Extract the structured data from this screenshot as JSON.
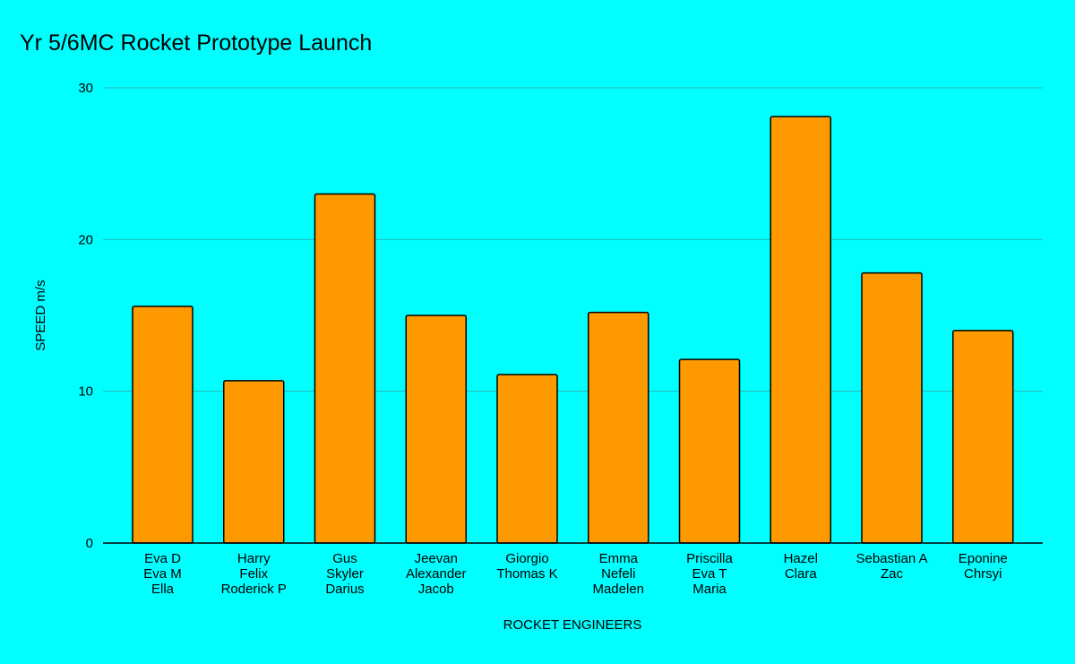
{
  "chart_data": {
    "type": "bar",
    "title": "Yr 5/6MC Rocket Prototype Launch",
    "xlabel": "ROCKET ENGINEERS",
    "ylabel": "SPEED m/s",
    "ylim": [
      0,
      30
    ],
    "yticks": [
      0,
      10,
      20,
      30
    ],
    "grid": true,
    "legend": "none",
    "colors": {
      "background": "#00ffff",
      "bar_fill": "#ff9900",
      "bar_stroke": "#000000",
      "grid": "#2bb7b7",
      "axis": "#000000"
    },
    "categories": [
      [
        "Eva D",
        "Eva M",
        "Ella"
      ],
      [
        "Harry",
        "Felix",
        "Roderick P"
      ],
      [
        "Gus",
        "Skyler",
        "Darius"
      ],
      [
        "Jeevan",
        "Alexander",
        "Jacob"
      ],
      [
        "Giorgio",
        "Thomas K"
      ],
      [
        "Emma",
        "Nefeli",
        "Madelen"
      ],
      [
        "Priscilla",
        "Eva T",
        "Maria"
      ],
      [
        "Hazel",
        "Clara"
      ],
      [
        "Sebastian A",
        "Zac"
      ],
      [
        "Eponine",
        "Chrsyi"
      ]
    ],
    "values": [
      15.6,
      10.7,
      23.0,
      15.0,
      11.1,
      15.2,
      12.1,
      28.1,
      17.8,
      14.0
    ]
  }
}
